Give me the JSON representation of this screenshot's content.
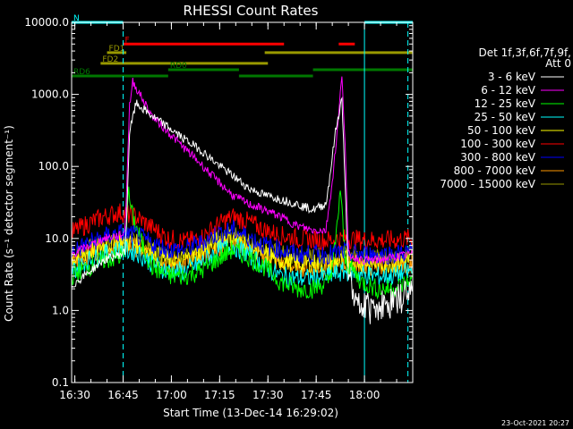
{
  "chart_data": {
    "type": "line",
    "title": "RHESSI Count Rates",
    "xlabel": "Start Time (13-Dec-14 16:29:02)",
    "ylabel": "Count Rate (s⁻¹ detector segment⁻¹)",
    "x_unit": "minutes after 16:29:02",
    "xlim": [
      0,
      106
    ],
    "ylim": [
      0.1,
      10000
    ],
    "y_scale": "log",
    "x_tick_labels": [
      "16:30",
      "16:45",
      "17:00",
      "17:15",
      "17:30",
      "17:45",
      "18:00"
    ],
    "x_tick_minutes": [
      1,
      16,
      31,
      46,
      61,
      76,
      91
    ],
    "y_tick_labels": [
      "0.1",
      "1.0",
      "10.0",
      "100.0",
      "1000.0",
      "10000.0"
    ],
    "y_tick_values": [
      0.1,
      1,
      10,
      100,
      1000,
      10000
    ],
    "legend_title": [
      "Det 1f,3f,6f,7f,9f,",
      "Att 0"
    ],
    "legend_placement": "right, outside plot",
    "series": [
      {
        "name": "3 - 6 keV",
        "color": "#ffffff",
        "x": [
          0,
          10,
          15,
          16.5,
          17,
          18,
          20,
          25,
          30,
          35,
          40,
          45,
          50,
          55,
          60,
          65,
          70,
          75,
          79,
          80,
          82,
          84,
          86,
          88,
          90,
          95,
          100,
          105
        ],
        "y": [
          2.2,
          5,
          6,
          6.5,
          15,
          300,
          750,
          500,
          350,
          240,
          170,
          110,
          75,
          50,
          40,
          35,
          30,
          25,
          30,
          60,
          300,
          900,
          3,
          1.3,
          1.2,
          1.1,
          1.3,
          1.8
        ]
      },
      {
        "name": "6 - 12 keV",
        "color": "#ff00ff",
        "x": [
          0,
          10,
          15,
          16.5,
          17,
          18,
          19,
          25,
          30,
          35,
          40,
          45,
          50,
          55,
          60,
          65,
          70,
          75,
          79,
          81,
          83,
          84,
          85,
          86,
          90,
          95,
          100,
          105
        ],
        "y": [
          6,
          10,
          11,
          12,
          40,
          700,
          1500,
          500,
          300,
          180,
          110,
          65,
          40,
          30,
          25,
          20,
          15,
          13,
          13,
          60,
          500,
          2000,
          200,
          6,
          5,
          5,
          5.5,
          6
        ]
      },
      {
        "name": "12 - 25 keV",
        "color": "#00ff00",
        "x": [
          0,
          5,
          10,
          15,
          16.5,
          17.5,
          19,
          22,
          25,
          30,
          35,
          40,
          45,
          50,
          55,
          60,
          65,
          70,
          75,
          80,
          82,
          83.5,
          85,
          90,
          95,
          100,
          105
        ],
        "y": [
          3,
          4,
          5,
          5.5,
          6,
          45,
          20,
          8,
          4,
          3,
          3,
          3.5,
          5,
          7,
          5.5,
          4,
          2.5,
          2,
          2,
          2.5,
          8,
          50,
          5,
          2.5,
          2,
          2,
          2.5
        ]
      },
      {
        "name": "25 - 50 keV",
        "color": "#00ffff",
        "x": [
          0,
          5,
          10,
          15,
          20,
          25,
          30,
          35,
          40,
          45,
          50,
          55,
          60,
          65,
          70,
          75,
          80,
          85,
          90,
          95,
          100,
          105
        ],
        "y": [
          3.5,
          5,
          6,
          7,
          6.5,
          4.5,
          3.5,
          3.5,
          4.5,
          6.5,
          8,
          6,
          4,
          3,
          2.8,
          2.8,
          3,
          3.5,
          3.2,
          3,
          3,
          3.5
        ]
      },
      {
        "name": "50 - 100 keV",
        "color": "#ffff00",
        "x": [
          0,
          5,
          10,
          15,
          20,
          25,
          30,
          35,
          40,
          45,
          50,
          55,
          60,
          65,
          70,
          75,
          80,
          85,
          90,
          95,
          100,
          105
        ],
        "y": [
          5,
          6.5,
          8,
          9,
          8.5,
          6.5,
          5,
          5,
          6.5,
          9,
          10.5,
          8,
          6,
          5,
          4.5,
          4.5,
          4.5,
          5,
          4.7,
          4.5,
          4.5,
          5
        ]
      },
      {
        "name": "100 - 300 keV",
        "color": "#ff0000",
        "x": [
          0,
          5,
          10,
          15,
          20,
          25,
          30,
          35,
          40,
          45,
          50,
          55,
          60,
          65,
          70,
          75,
          80,
          85,
          90,
          95,
          100,
          105
        ],
        "y": [
          12,
          16,
          20,
          23,
          20,
          14,
          10,
          9,
          10,
          15,
          20,
          17,
          13,
          11,
          10,
          9.5,
          9.5,
          10,
          9.5,
          9.5,
          9.5,
          10
        ]
      },
      {
        "name": "300 - 800 keV",
        "color": "#0000ff",
        "x": [
          0,
          5,
          10,
          15,
          20,
          25,
          30,
          35,
          40,
          45,
          50,
          55,
          60,
          65,
          70,
          75,
          80,
          85,
          90,
          95,
          100,
          105
        ],
        "y": [
          6.5,
          8.5,
          10.5,
          12,
          11,
          8.5,
          7,
          7,
          8.5,
          11.5,
          13,
          10.5,
          8,
          7,
          6,
          6,
          6,
          6.5,
          6,
          6,
          6,
          6.5
        ]
      },
      {
        "name": "800 - 7000 keV",
        "color": "#ff9900",
        "x": [
          0,
          5,
          10,
          15,
          20,
          25,
          30,
          35,
          40,
          45,
          50,
          55,
          60,
          65,
          70,
          75,
          80,
          85,
          90,
          95,
          100,
          105
        ],
        "y": [
          4.5,
          6,
          7,
          8,
          7.5,
          5.5,
          4.5,
          4.5,
          5.5,
          7.5,
          9,
          7,
          5.5,
          4.5,
          4,
          4,
          4,
          4.5,
          4.2,
          4,
          4,
          4.5
        ]
      },
      {
        "name": "7000 - 15000 keV",
        "color": "#999900",
        "x": [
          0,
          5,
          10,
          15,
          20,
          25,
          30,
          35,
          40,
          45,
          50,
          55,
          60,
          65,
          70,
          75,
          80,
          85,
          90,
          95,
          100,
          105
        ],
        "y": [
          5.5,
          7,
          8.5,
          9.5,
          9,
          7,
          5.5,
          5.5,
          7,
          9.5,
          11,
          9,
          7,
          6,
          5.5,
          5.5,
          5.5,
          6,
          5.7,
          5.5,
          5.5,
          6
        ]
      }
    ],
    "state_bars": [
      {
        "label": "N",
        "color": "#00ffff",
        "value": 10000,
        "segments": [
          [
            0,
            16
          ],
          [
            91,
            106
          ]
        ]
      },
      {
        "label": "F",
        "color": "#ff0000",
        "value": 5000,
        "segments": [
          [
            16,
            66
          ],
          [
            83,
            88
          ]
        ]
      },
      {
        "label": "FD1",
        "color": "#999900",
        "value": 3800,
        "segments": [
          [
            11,
            17
          ],
          [
            60,
            106
          ]
        ]
      },
      {
        "label": "FD2",
        "color": "#999900",
        "value": 2700,
        "segments": [
          [
            9,
            61
          ]
        ]
      },
      {
        "label": "RD0",
        "color": "#007700",
        "value": 2200,
        "segments": [
          [
            30,
            52
          ],
          [
            75,
            106
          ]
        ]
      },
      {
        "label": "RD6",
        "color": "#007700",
        "value": 1800,
        "segments": [
          [
            0,
            30
          ],
          [
            52,
            75
          ]
        ]
      }
    ],
    "solid_vlines": [
      {
        "x": 0,
        "color": "#00ffff"
      },
      {
        "x": 91,
        "color": "#00ffff"
      }
    ],
    "dashed_vlines": [
      {
        "x": 16,
        "color": "#00ffff"
      },
      {
        "x": 104.5,
        "color": "#00ffff"
      }
    ]
  },
  "footer_date": "23-Oct-2021 20:27"
}
